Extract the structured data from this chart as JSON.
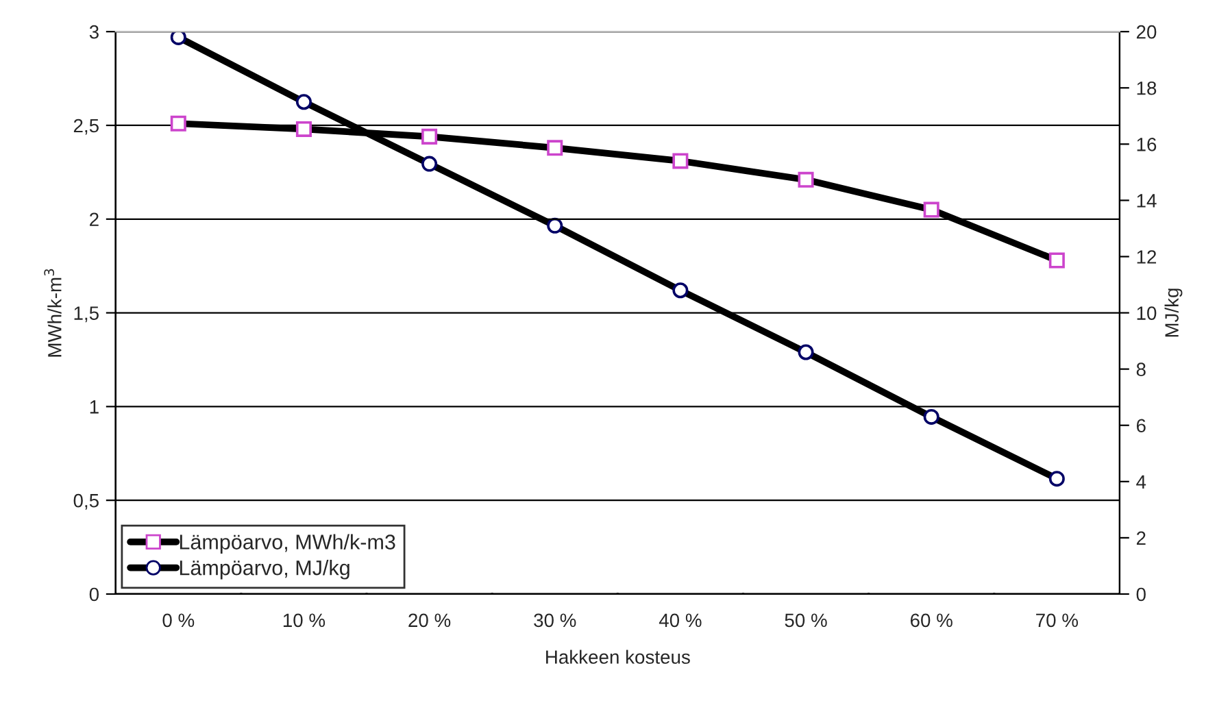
{
  "chart_data": {
    "type": "line",
    "xlabel": "Hakkeen kosteus",
    "ylabel": "MWh/k-m$^{3}$",
    "y2label": "MJ/kg",
    "categories": [
      "0 %",
      "10 %",
      "20 %",
      "30 %",
      "40 %",
      "50 %",
      "60 %",
      "70 %"
    ],
    "series": [
      {
        "name": "Lämpöarvo, MWh/k-m3",
        "color": "#000000",
        "marker": "square",
        "values": [
          2.51,
          2.48,
          2.44,
          2.38,
          2.31,
          2.21,
          2.05,
          1.78
        ]
      },
      {
        "name": "Lämpöarvo, MJ/kg",
        "color": "#000000",
        "marker": "circle",
        "axis": "y2",
        "values": [
          19.8,
          17.5,
          15.3,
          13.1,
          10.8,
          8.6,
          6.3,
          4.1
        ]
      }
    ],
    "ylim": [
      0,
      3
    ],
    "yticks": [
      0,
      {
        "value": 0.5,
        "label": "0,5"
      },
      1,
      {
        "value": 1.5,
        "label": "1,5"
      },
      2,
      {
        "value": 2.5,
        "label": "2,5"
      },
      3
    ],
    "y2lim": [
      0,
      20
    ],
    "y2ticks": [
      0,
      2,
      4,
      6,
      8,
      10,
      12,
      14,
      16,
      18,
      20
    ],
    "grid": "y",
    "legend": "bottom left",
    "line_style": "solid"
  }
}
